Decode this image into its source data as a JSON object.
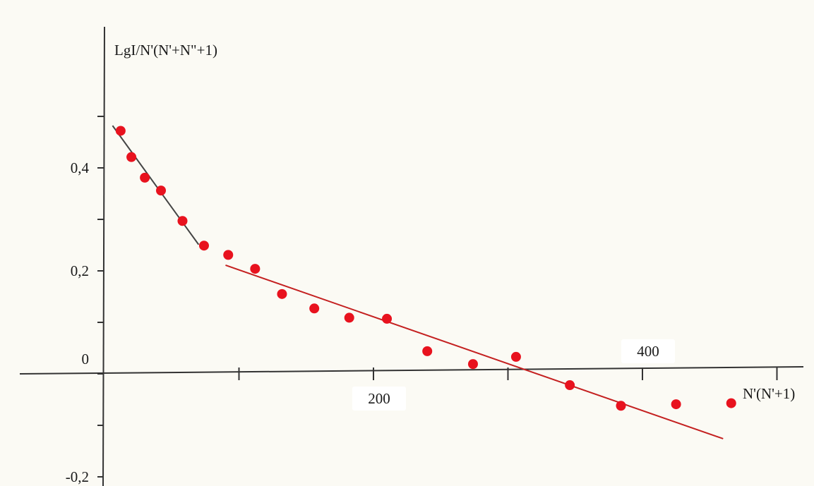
{
  "chart_data": {
    "type": "scatter",
    "title": "",
    "xlabel": "N'(N'+1)",
    "ylabel": "LgI/N'(N'+N\"+1)",
    "xlim": [
      -30,
      525
    ],
    "ylim": [
      -0.2,
      0.6
    ],
    "grid": false,
    "legend": "none",
    "x_ticks": [
      {
        "value": 200,
        "label": "200"
      },
      {
        "value": 400,
        "label": "400"
      }
    ],
    "x_minor_ticks": [
      100,
      300,
      500
    ],
    "y_ticks": [
      {
        "value": 0.4,
        "label": "0,4"
      },
      {
        "value": 0.2,
        "label": "0,2"
      },
      {
        "value": 0,
        "label": "0"
      },
      {
        "value": -0.2,
        "label": "-0,2"
      }
    ],
    "y_minor_ticks": [
      0.5,
      0.3,
      0.1,
      -0.1
    ],
    "points_color": "#e8121e",
    "points": [
      {
        "x": 12,
        "y": 0.472
      },
      {
        "x": 20,
        "y": 0.421
      },
      {
        "x": 30,
        "y": 0.381
      },
      {
        "x": 42,
        "y": 0.356
      },
      {
        "x": 58,
        "y": 0.297
      },
      {
        "x": 74,
        "y": 0.249
      },
      {
        "x": 92,
        "y": 0.231
      },
      {
        "x": 112,
        "y": 0.204
      },
      {
        "x": 132,
        "y": 0.155
      },
      {
        "x": 156,
        "y": 0.127
      },
      {
        "x": 182,
        "y": 0.109
      },
      {
        "x": 210,
        "y": 0.107
      },
      {
        "x": 240,
        "y": 0.044
      },
      {
        "x": 274,
        "y": 0.019
      },
      {
        "x": 306,
        "y": 0.033
      },
      {
        "x": 346,
        "y": -0.022
      },
      {
        "x": 384,
        "y": -0.062
      },
      {
        "x": 425,
        "y": -0.059
      },
      {
        "x": 466,
        "y": -0.057
      }
    ],
    "fit_lines": [
      {
        "color": "#444444",
        "x1": 6,
        "y1": 0.482,
        "x2": 70,
        "y2": 0.251
      },
      {
        "color": "#c42020",
        "x1": 90,
        "y1": 0.211,
        "x2": 460,
        "y2": -0.126
      }
    ]
  }
}
